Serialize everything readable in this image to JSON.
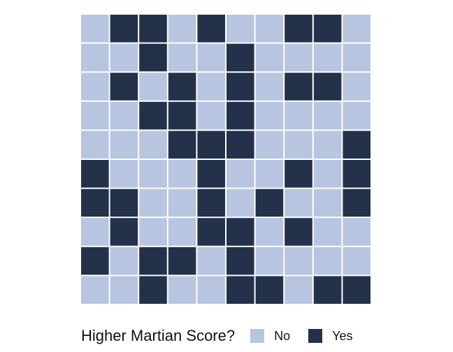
{
  "chart_data": {
    "type": "heatmap",
    "variant": "waffle",
    "rows": 10,
    "cols": 10,
    "categories": [
      "No",
      "Yes"
    ],
    "grid": [
      [
        "No",
        "Yes",
        "Yes",
        "No",
        "Yes",
        "No",
        "No",
        "Yes",
        "Yes",
        "No"
      ],
      [
        "No",
        "No",
        "Yes",
        "No",
        "No",
        "Yes",
        "No",
        "No",
        "No",
        "No"
      ],
      [
        "No",
        "Yes",
        "No",
        "Yes",
        "No",
        "Yes",
        "No",
        "Yes",
        "Yes",
        "No"
      ],
      [
        "No",
        "No",
        "Yes",
        "Yes",
        "No",
        "Yes",
        "No",
        "No",
        "No",
        "No"
      ],
      [
        "No",
        "No",
        "No",
        "Yes",
        "Yes",
        "Yes",
        "No",
        "No",
        "No",
        "Yes"
      ],
      [
        "Yes",
        "No",
        "No",
        "No",
        "Yes",
        "No",
        "No",
        "Yes",
        "No",
        "Yes"
      ],
      [
        "Yes",
        "Yes",
        "No",
        "No",
        "Yes",
        "No",
        "Yes",
        "No",
        "No",
        "Yes"
      ],
      [
        "No",
        "Yes",
        "No",
        "No",
        "Yes",
        "Yes",
        "No",
        "Yes",
        "No",
        "No"
      ],
      [
        "Yes",
        "No",
        "Yes",
        "Yes",
        "No",
        "Yes",
        "No",
        "No",
        "No",
        "No"
      ],
      [
        "No",
        "No",
        "Yes",
        "No",
        "No",
        "Yes",
        "Yes",
        "No",
        "Yes",
        "Yes"
      ]
    ],
    "colors": {
      "No": "#b8c5e1",
      "Yes": "#23314a"
    },
    "legend": {
      "title": "Higher Martian Score?",
      "position": "bottom",
      "items": [
        {
          "label": "No",
          "color": "#b8c5e1"
        },
        {
          "label": "Yes",
          "color": "#23314a"
        }
      ]
    }
  }
}
